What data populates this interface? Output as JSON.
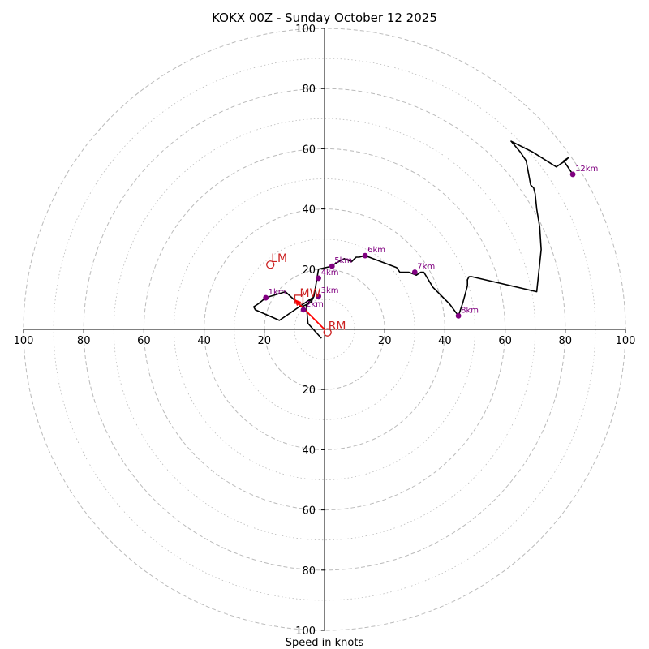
{
  "chart_data": {
    "type": "line",
    "title": "KOKX 00Z - Sunday October 12 2025",
    "xlabel": "Speed in knots",
    "axis_range": [
      -100,
      100
    ],
    "ring_radii": [
      20,
      40,
      60,
      80,
      100
    ],
    "minor_ring_radii": [
      10,
      30,
      50,
      70,
      90
    ],
    "tick_values": [
      20,
      40,
      60,
      80,
      100
    ],
    "tick_labels": [
      "20",
      "40",
      "60",
      "80",
      "100"
    ],
    "colors": {
      "trace": "#000000",
      "height_marker": "#800080",
      "storm_marker": "#cc2222",
      "shear_vector": "#ff0000",
      "grid": "#bbbbbb"
    },
    "hodograph": {
      "u": [
        -1.0,
        -5.5,
        -6.0,
        -4.0,
        -15.0,
        -23.0,
        -23.5,
        -22.0,
        -19.5,
        -13.0,
        -7.5,
        -4.5,
        -3.5,
        -3.0,
        -2.0,
        2.5,
        3.0,
        6.5,
        9.0,
        10.5,
        11.5,
        13.5,
        24.0,
        25.0,
        28.0,
        30.5,
        32.0,
        33.0,
        36.0,
        41.5,
        44.5,
        46.0,
        47.5,
        47.5,
        48.0,
        49.0,
        70.5,
        72.0,
        71.5,
        70.5,
        70.0,
        69.5,
        68.5,
        67.0,
        65.0,
        62.0,
        69.0,
        77.0,
        80.0,
        81.0,
        79.5,
        82.5
      ],
      "v": [
        -3.0,
        2.0,
        8.0,
        10.5,
        3.0,
        6.5,
        7.5,
        8.5,
        10.5,
        12.5,
        7.5,
        9.0,
        11.0,
        14.0,
        20.0,
        21.0,
        21.5,
        23.5,
        22.5,
        24.0,
        24.0,
        24.5,
        20.5,
        19.0,
        19.0,
        18.0,
        19.0,
        19.0,
        14.0,
        8.5,
        4.5,
        9.0,
        14.5,
        16.5,
        17.5,
        17.5,
        12.5,
        26.5,
        34.0,
        40.0,
        45.0,
        47.0,
        48.0,
        56.0,
        59.0,
        62.5,
        59.0,
        54.0,
        56.0,
        57.0,
        56.0,
        51.5
      ]
    },
    "height_points": [
      {
        "label": "1km",
        "u": -19.5,
        "v": 10.5
      },
      {
        "label": "2km",
        "u": -7.0,
        "v": 6.5
      },
      {
        "label": "3km",
        "u": -2.0,
        "v": 11.0
      },
      {
        "label": "4km",
        "u": -2.0,
        "v": 17.0
      },
      {
        "label": "5km",
        "u": 2.5,
        "v": 21.0
      },
      {
        "label": "6km",
        "u": 13.5,
        "v": 24.5
      },
      {
        "label": "7km",
        "u": 30.0,
        "v": 19.0
      },
      {
        "label": "8km",
        "u": 44.5,
        "v": 4.5
      },
      {
        "label": "12km",
        "u": 82.5,
        "v": 51.5
      }
    ],
    "storm_motions": [
      {
        "label": "LM",
        "u": -18.0,
        "v": 21.5,
        "marker": "circle"
      },
      {
        "label": "RM",
        "u": 1.0,
        "v": -1.0,
        "marker": "circle"
      },
      {
        "label": "MW",
        "u": -8.5,
        "v": 10.0,
        "marker": "square"
      }
    ],
    "shear_vector": {
      "from": [
        0.0,
        0.0
      ],
      "to": [
        -10.0,
        10.0
      ]
    }
  }
}
